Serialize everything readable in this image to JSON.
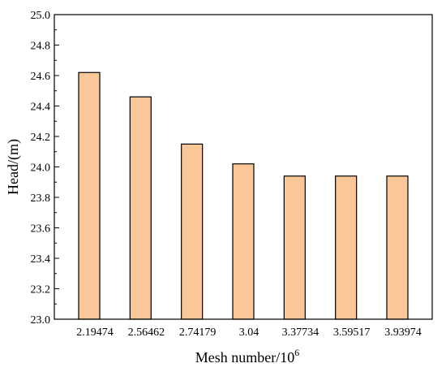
{
  "chart_data": {
    "type": "bar",
    "categories": [
      "2.19474",
      "2.56462",
      "2.74179",
      "3.04",
      "3.37734",
      "3.59517",
      "3.93974"
    ],
    "values": [
      24.62,
      24.46,
      24.15,
      24.02,
      23.94,
      23.94,
      23.94
    ],
    "title": "",
    "xlabel": "Mesh number/10",
    "xlabel_sup": "6",
    "ylabel": "Head/(m)",
    "ylim": [
      23.0,
      25.0
    ],
    "yticks": [
      "23.0",
      "23.2",
      "23.4",
      "23.6",
      "23.8",
      "24.0",
      "24.2",
      "24.4",
      "24.6",
      "24.8",
      "25.0"
    ],
    "grid": false,
    "legend": "none",
    "bar_color": "#fac898",
    "bar_edge_color": "#000000"
  }
}
